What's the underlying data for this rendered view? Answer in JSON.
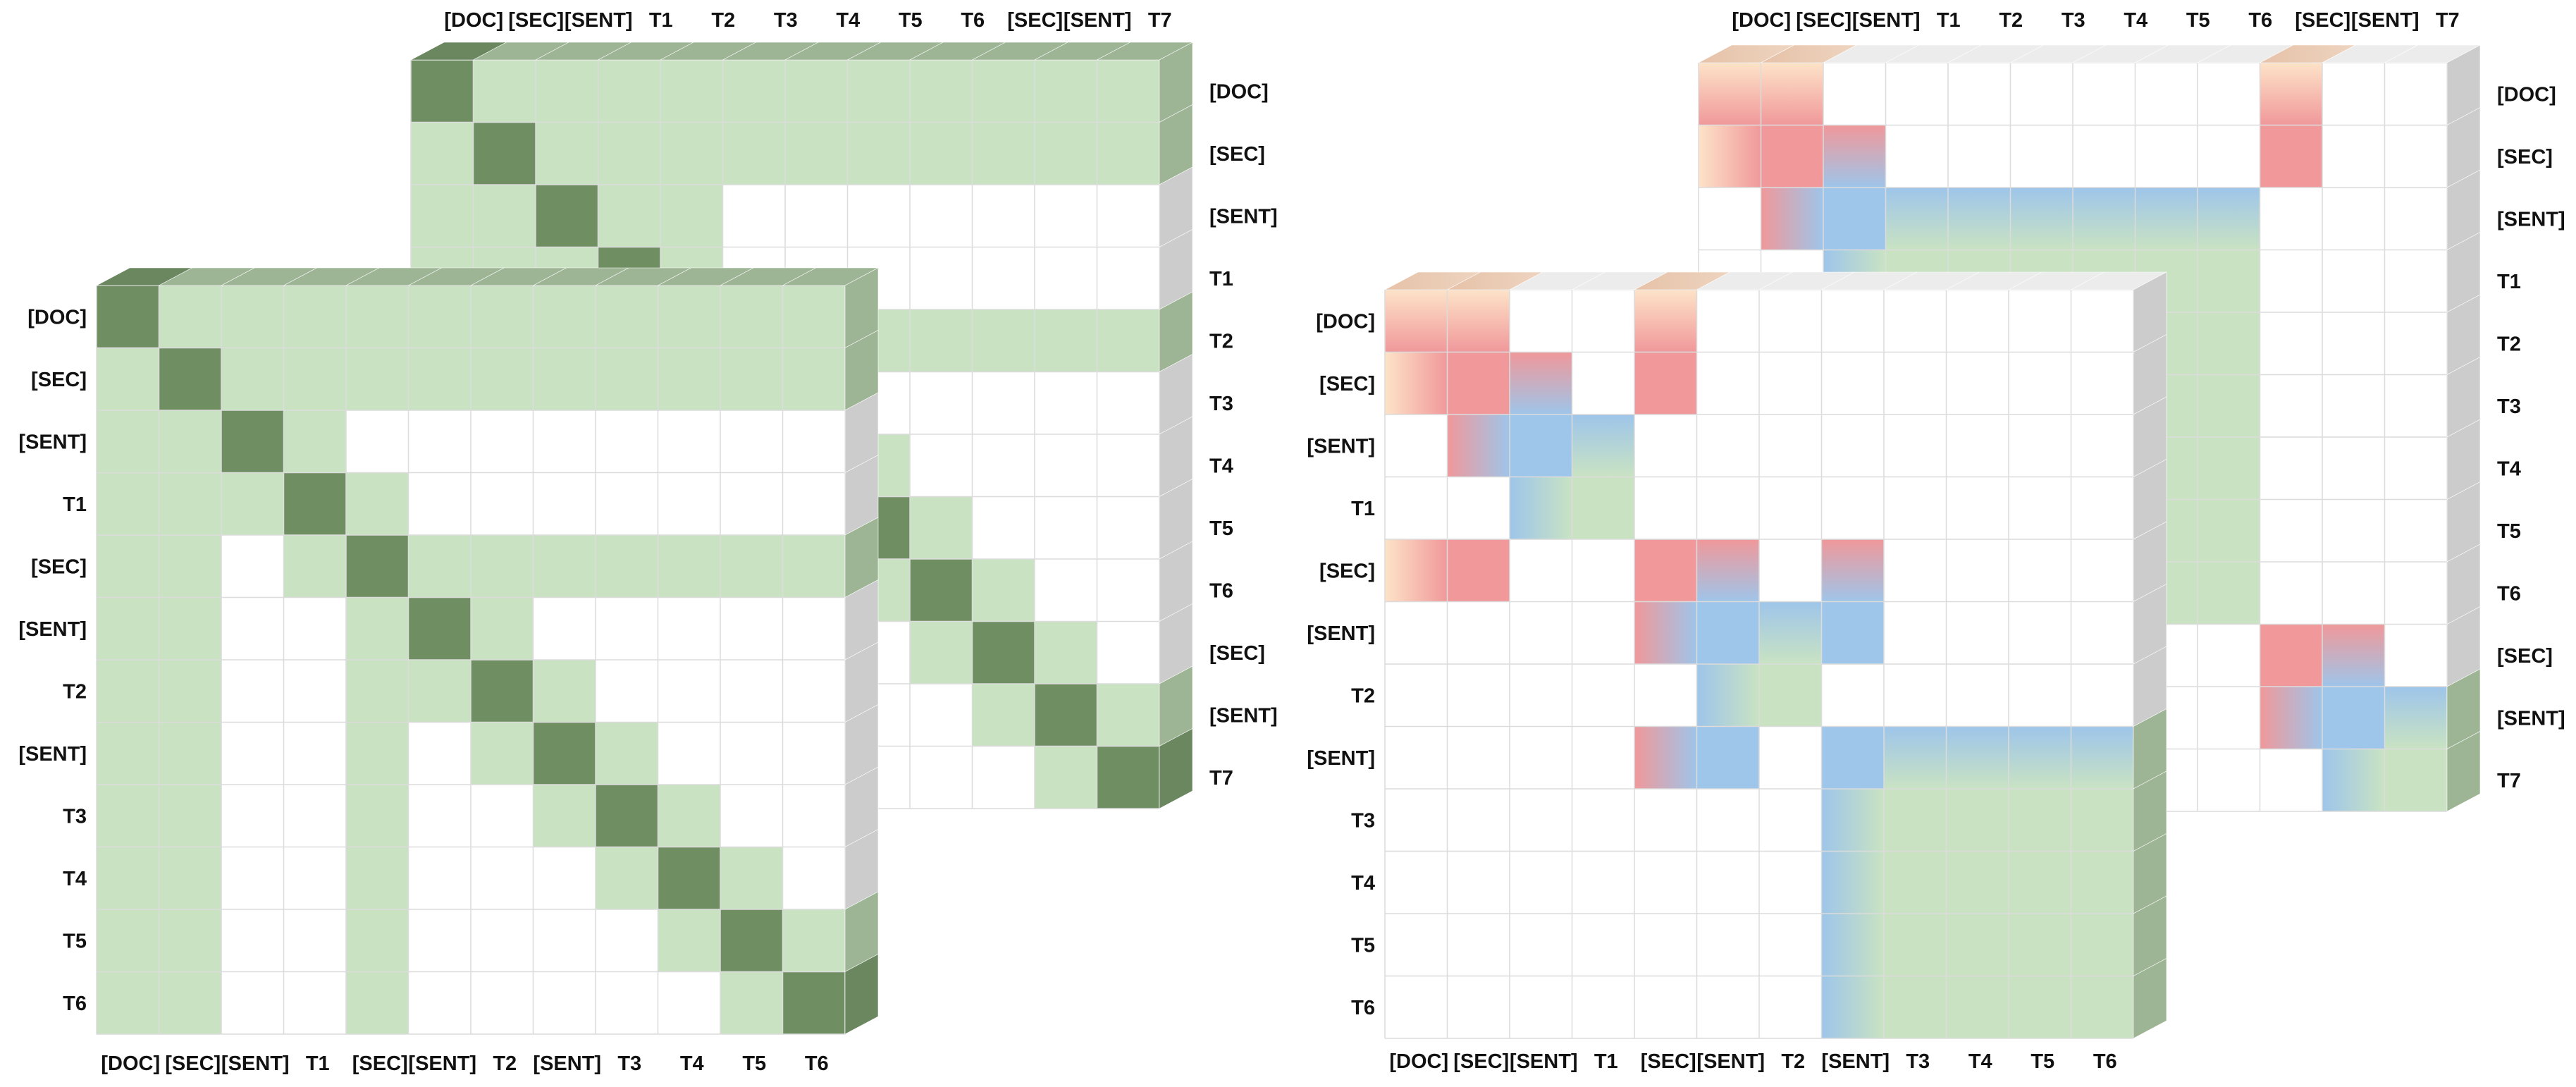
{
  "colors": {
    "green_light": "#c9e3c2",
    "green_dark": "#6f8f63",
    "green_side": "#9eb595",
    "green_side_dark": "#6a8760",
    "gray_side": "#cccccc",
    "gray_top": "#ececec",
    "red": "#f0989a",
    "peach": "#fde3c8",
    "blue": "#9ec5ea",
    "grid": "#dcdcdc"
  },
  "left_panel": {
    "back_matrix": {
      "col_labels": [
        "[DOC]",
        "[SEC]",
        "[SENT]",
        "T1",
        "T2",
        "T3",
        "T4",
        "T5",
        "T6",
        "[SEC]",
        "[SENT]",
        "T7"
      ],
      "row_labels": [
        "[DOC]",
        "[SEC]",
        "[SENT]",
        "T1",
        "T2",
        "T3",
        "T4",
        "T5",
        "T6",
        "[SEC]",
        "[SENT]",
        "T7"
      ]
    },
    "front_matrix": {
      "col_labels": [
        "[DOC]",
        "[SEC]",
        "[SENT]",
        "T1",
        "[SEC]",
        "[SENT]",
        "T2",
        "[SENT]",
        "T3",
        "T4",
        "T5",
        "T6"
      ],
      "row_labels": [
        "[DOC]",
        "[SEC]",
        "[SENT]",
        "T1",
        "[SEC]",
        "[SENT]",
        "T2",
        "[SENT]",
        "T3",
        "T4",
        "T5",
        "T6"
      ]
    }
  },
  "right_panel": {
    "back_matrix": {
      "col_labels": [
        "[DOC]",
        "[SEC]",
        "[SENT]",
        "T1",
        "T2",
        "T3",
        "T4",
        "T5",
        "T6",
        "[SEC]",
        "[SENT]",
        "T7"
      ],
      "row_labels": [
        "[DOC]",
        "[SEC]",
        "[SENT]",
        "T1",
        "T2",
        "T3",
        "T4",
        "T5",
        "T6",
        "[SEC]",
        "[SENT]",
        "T7"
      ]
    },
    "front_matrix": {
      "col_labels": [
        "[DOC]",
        "[SEC]",
        "[SENT]",
        "T1",
        "[SEC]",
        "[SENT]",
        "T2",
        "[SENT]",
        "T3",
        "T4",
        "T5",
        "T6"
      ],
      "row_labels": [
        "[DOC]",
        "[SEC]",
        "[SENT]",
        "T1",
        "[SEC]",
        "[SENT]",
        "T2",
        "[SENT]",
        "T3",
        "T4",
        "T5",
        "T6"
      ]
    }
  }
}
